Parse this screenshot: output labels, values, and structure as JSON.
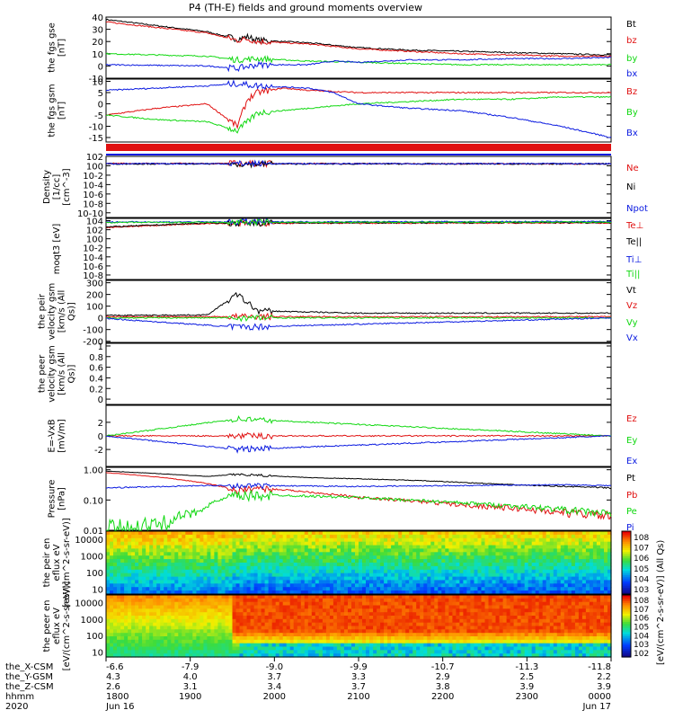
{
  "title": "P4 (TH-E) fields and ground moments overview",
  "colors": {
    "black": "#000000",
    "red": "#e01010",
    "green": "#10d810",
    "blue": "#0a1ae0"
  },
  "chart_data": [
    {
      "type": "line",
      "ylabel": "the fgs gse [nT]",
      "yticks": [
        40,
        30,
        20,
        10,
        0,
        -10
      ],
      "ylim": [
        -10,
        40
      ],
      "series": [
        {
          "name": "Bt",
          "color": "#000000",
          "x": [
            0,
            0.2,
            0.26,
            0.28,
            0.3,
            0.4,
            0.5,
            0.6,
            0.7,
            0.8,
            0.9,
            1
          ],
          "values": [
            38,
            28,
            22,
            24,
            21,
            19,
            15,
            13,
            12,
            11,
            10,
            9
          ]
        },
        {
          "name": "bz",
          "color": "#e01010",
          "x": [
            0,
            0.2,
            0.26,
            0.28,
            0.3,
            0.4,
            0.5,
            0.6,
            0.7,
            0.8,
            0.9,
            1
          ],
          "values": [
            36,
            27,
            21,
            22,
            20,
            18,
            14,
            12,
            10,
            9,
            8,
            8
          ]
        },
        {
          "name": "by",
          "color": "#10d810",
          "x": [
            0,
            0.2,
            0.26,
            0.3,
            0.4,
            0.5,
            0.6,
            0.7,
            0.8,
            0.9,
            1
          ],
          "values": [
            10,
            8,
            5,
            6,
            4,
            3,
            2,
            1,
            1,
            1,
            1
          ]
        },
        {
          "name": "bx",
          "color": "#0a1ae0",
          "x": [
            0,
            0.2,
            0.26,
            0.3,
            0.4,
            0.45,
            0.5,
            0.6,
            0.7,
            0.8,
            0.9,
            1
          ],
          "values": [
            1,
            0,
            -2,
            1,
            1,
            4,
            3,
            5,
            5,
            6,
            6,
            7
          ]
        }
      ]
    },
    {
      "type": "line",
      "ylabel": "the fgs gsm [nT]",
      "yticks": [
        10,
        5,
        0,
        -5,
        -10,
        -15
      ],
      "ylim": [
        -17,
        11
      ],
      "series": [
        {
          "name": "Bz",
          "color": "#e01010",
          "x": [
            0,
            0.1,
            0.2,
            0.26,
            0.28,
            0.3,
            0.35,
            0.4,
            0.5,
            0.6,
            0.7,
            0.8,
            0.9,
            1
          ],
          "values": [
            -5,
            -2,
            0,
            -10,
            2,
            5,
            7,
            6,
            5,
            5,
            5,
            5,
            5,
            5
          ]
        },
        {
          "name": "By",
          "color": "#10d810",
          "x": [
            0,
            0.1,
            0.2,
            0.26,
            0.3,
            0.4,
            0.5,
            0.6,
            0.7,
            0.8,
            0.9,
            1
          ],
          "values": [
            -5,
            -7,
            -8,
            -12,
            -4,
            -2,
            0,
            1,
            2,
            2,
            3,
            3
          ]
        },
        {
          "name": "Bx",
          "color": "#0a1ae0",
          "x": [
            0,
            0.2,
            0.26,
            0.3,
            0.4,
            0.45,
            0.5,
            0.6,
            0.7,
            0.8,
            0.9,
            1
          ],
          "values": [
            6,
            8,
            9,
            8,
            7,
            5,
            0,
            -2,
            -3,
            -6,
            -10,
            -15
          ]
        }
      ]
    },
    {
      "type": "line",
      "ylabel": "Density [1/cc] [cm^-3]",
      "yticks": [
        "10^2",
        "10^0",
        "10^-2",
        "10^-4",
        "10^-6",
        "10^-8",
        "10^-10"
      ],
      "ylim": [
        -11,
        2
      ],
      "log": true,
      "series": [
        {
          "name": "Ne",
          "color": "#e01010",
          "x": [
            0,
            1
          ],
          "values": [
            0.5,
            0.4
          ]
        },
        {
          "name": "Ni",
          "color": "#000000",
          "x": [
            0,
            1
          ],
          "values": [
            0.4,
            0.4
          ]
        },
        {
          "name": "Npot",
          "color": "#0a1ae0",
          "x": [
            0,
            1
          ],
          "values": [
            0.45,
            0.45
          ]
        }
      ]
    },
    {
      "type": "line",
      "ylabel": "moqt3 [eV]",
      "yticks": [
        "10^4",
        "10^2",
        "10^0",
        "10^-2",
        "10^-4",
        "10^-6",
        "10^-8"
      ],
      "ylim": [
        -9,
        4.5
      ],
      "log": true,
      "series": [
        {
          "name": "Te⊥",
          "color": "#e01010",
          "x": [
            0,
            0.2,
            1
          ],
          "values": [
            2.5,
            3.4,
            3.5
          ]
        },
        {
          "name": "Te||",
          "color": "#000000",
          "x": [
            0,
            0.2,
            1
          ],
          "values": [
            2.6,
            3.5,
            3.6
          ]
        },
        {
          "name": "Ti⊥",
          "color": "#0a1ae0",
          "x": [
            0,
            1
          ],
          "values": [
            3.7,
            3.8
          ]
        },
        {
          "name": "Ti||",
          "color": "#10d810",
          "x": [
            0,
            1
          ],
          "values": [
            3.6,
            3.7
          ]
        }
      ]
    },
    {
      "type": "line",
      "ylabel": "the peir velocity gsm [km/s (All Qs)]",
      "yticks": [
        300,
        200,
        100,
        0,
        -100,
        -200
      ],
      "ylim": [
        -210,
        320
      ],
      "series": [
        {
          "name": "Vt",
          "color": "#000000",
          "x": [
            0,
            0.2,
            0.26,
            0.3,
            0.5,
            1
          ],
          "values": [
            20,
            25,
            200,
            60,
            40,
            40
          ]
        },
        {
          "name": "Vz",
          "color": "#e01010",
          "x": [
            0,
            1
          ],
          "values": [
            10,
            10
          ]
        },
        {
          "name": "Vy",
          "color": "#10d810",
          "x": [
            0,
            1
          ],
          "values": [
            0,
            0
          ]
        },
        {
          "name": "Vx",
          "color": "#0a1ae0",
          "x": [
            0,
            0.26,
            1
          ],
          "values": [
            -5,
            -80,
            0
          ]
        }
      ]
    },
    {
      "type": "line",
      "ylabel": "the peer velocity gsm [km/s (All Qs)]",
      "yticks": [
        1.0,
        0.8,
        0.6,
        0.4,
        0.2,
        0.0
      ],
      "ylim": [
        -0.1,
        1.05
      ],
      "series": [
        {
          "name": "Vt",
          "color": "#000000",
          "x": [],
          "values": []
        },
        {
          "name": "Vz",
          "color": "#e01010",
          "x": [],
          "values": []
        },
        {
          "name": "Vy",
          "color": "#10d810",
          "x": [],
          "values": []
        },
        {
          "name": "Vx",
          "color": "#0a1ae0",
          "x": [],
          "values": []
        }
      ]
    },
    {
      "type": "line",
      "ylabel": "E=-VxB [mV/m]",
      "yticks": [
        2,
        0,
        -2
      ],
      "ylim": [
        -4.5,
        4.5
      ],
      "series": [
        {
          "name": "Ez",
          "color": "#e01010",
          "x": [
            0,
            1
          ],
          "values": [
            0,
            0
          ]
        },
        {
          "name": "Ey",
          "color": "#10d810",
          "x": [
            0,
            0.26,
            1
          ],
          "values": [
            0,
            2.5,
            0
          ]
        },
        {
          "name": "Ex",
          "color": "#0a1ae0",
          "x": [
            0,
            0.26,
            1
          ],
          "values": [
            0,
            -2,
            0
          ]
        }
      ]
    },
    {
      "type": "line",
      "ylabel": "Pressure [nPa]",
      "yticks": [
        "1.00",
        "0.10",
        "0.01"
      ],
      "ylim": [
        0.01,
        1.2
      ],
      "log": true,
      "series": [
        {
          "name": "Pt",
          "color": "#000000",
          "x": [
            0,
            0.2,
            0.26,
            0.4,
            0.6,
            0.8,
            1
          ],
          "values": [
            0.9,
            0.6,
            0.7,
            0.55,
            0.45,
            0.32,
            0.25
          ]
        },
        {
          "name": "Pb",
          "color": "#e01010",
          "x": [
            0,
            0.2,
            0.26,
            0.3,
            0.5,
            0.7,
            0.9,
            1
          ],
          "values": [
            0.8,
            0.35,
            0.2,
            0.25,
            0.12,
            0.07,
            0.04,
            0.03
          ]
        },
        {
          "name": "Pe",
          "color": "#10d810",
          "x": [
            0,
            0.1,
            0.18,
            0.25,
            0.3,
            0.5,
            0.7,
            0.9,
            1
          ],
          "values": [
            0.01,
            0.015,
            0.04,
            0.13,
            0.15,
            0.12,
            0.08,
            0.05,
            0.035
          ]
        },
        {
          "name": "Pi",
          "color": "#0a1ae0",
          "x": [
            0,
            0.2,
            0.26,
            0.5,
            0.7,
            0.9,
            1
          ],
          "values": [
            0.25,
            0.3,
            0.3,
            0.28,
            0.3,
            0.32,
            0.3
          ]
        }
      ]
    },
    {
      "type": "heatmap",
      "ylabel": "the peir en eflux eV [eV/(cm^2-s-sr-eV)]",
      "yticks": [
        10000,
        1000,
        100,
        10
      ],
      "ylim": [
        5,
        30000
      ],
      "log": true
    },
    {
      "type": "heatmap",
      "ylabel": "the peer en eflux eV [eV/(cm^2-s-sr-eV)]",
      "yticks": [
        10000,
        1000,
        100,
        10
      ],
      "ylim": [
        5,
        30000
      ],
      "log": true
    }
  ],
  "colorbar": {
    "label": "[eV/(cm^2-s-sr-eV)] (All Qs)",
    "ticks1": [
      "10^8",
      "10^7",
      "10^6",
      "10^5",
      "10^4",
      "10^3"
    ],
    "ticks2": [
      "10^8",
      "10^7",
      "10^6",
      "10^5",
      "10^4",
      "10^3",
      "10^2"
    ]
  },
  "xaxis": {
    "rows": [
      {
        "name": "the_X-CSM",
        "values": [
          "-6.6",
          "-7.9",
          "-9.0",
          "-9.9",
          "-10.7",
          "-11.3",
          "-11.8"
        ]
      },
      {
        "name": "the_Y-GSM",
        "values": [
          "4.3",
          "4.0",
          "3.7",
          "3.3",
          "2.9",
          "2.5",
          "2.2"
        ]
      },
      {
        "name": "the_Z-CSM",
        "values": [
          "2.6",
          "3.1",
          "3.4",
          "3.7",
          "3.8",
          "3.9",
          "3.9"
        ]
      },
      {
        "name": "hhmm",
        "values": [
          "1800",
          "1900",
          "2000",
          "2100",
          "2200",
          "2300",
          "0000"
        ]
      }
    ],
    "date_row": {
      "year": "2020",
      "left": "Jun 16",
      "right": "Jun 17"
    }
  }
}
